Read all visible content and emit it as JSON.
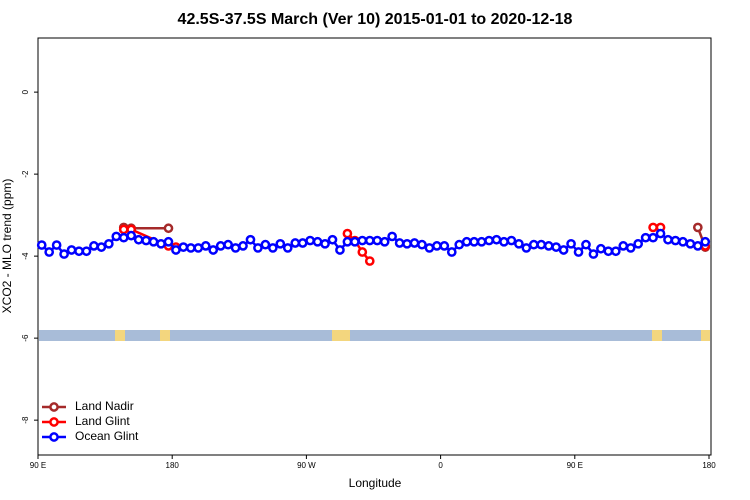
{
  "chart_data": {
    "type": "line",
    "title": "42.5S-37.5S March (Ver 10)   2015-01-01 to 2020-12-18",
    "x_label": "Longitude",
    "y_label": "XCO2 - MLO trend (ppm)",
    "xlim": [
      90,
      540
    ],
    "ylim": [
      -8.85,
      1.32
    ],
    "xticks": [
      {
        "value": 90,
        "label": "90 E"
      },
      {
        "value": 180,
        "label": "180"
      },
      {
        "value": 270,
        "label": "90 W"
      },
      {
        "value": 360,
        "label": "0"
      },
      {
        "value": 450,
        "label": "90 E"
      },
      {
        "value": 540,
        "label": "180"
      }
    ],
    "yticks": [
      0,
      -2,
      -4,
      -6,
      -8
    ],
    "legend": "bottom-left",
    "series": [
      {
        "name": "Land Nadir",
        "color": "#a52a2a",
        "x": [
          147.5,
          152.5,
          177.5,
          300,
          532.5,
          537.5
        ],
        "values": [
          -3.3,
          -3.32,
          -3.32,
          null,
          -3.3,
          -3.78
        ]
      },
      {
        "name": "Land Glint",
        "color": "#ff0000",
        "x": [
          147.5,
          152.5,
          177.5,
          182.5,
          240,
          297.5,
          302.5,
          307.5,
          312.5,
          400,
          502.5,
          507.5,
          520,
          537.5
        ],
        "values": [
          -3.35,
          -3.35,
          -3.75,
          -3.78,
          null,
          -3.45,
          -3.62,
          -3.9,
          -4.12,
          null,
          -3.3,
          -3.3,
          null,
          -3.75
        ]
      },
      {
        "name": "Ocean Glint",
        "color": "#0000ff",
        "x": [
          92.5,
          97.5,
          102.5,
          107.5,
          112.5,
          117.5,
          122.5,
          127.5,
          132.5,
          137.5,
          142.5,
          147.5,
          152.5,
          157.5,
          162.5,
          167.5,
          172.5,
          177.5,
          182.5,
          187.5,
          192.5,
          197.5,
          202.5,
          207.5,
          212.5,
          217.5,
          222.5,
          227.5,
          232.5,
          237.5,
          242.5,
          247.5,
          252.5,
          257.5,
          262.5,
          267.5,
          272.5,
          277.5,
          282.5,
          287.5,
          292.5,
          297.5,
          302.5,
          307.5,
          312.5,
          317.5,
          322.5,
          327.5,
          332.5,
          337.5,
          342.5,
          347.5,
          352.5,
          357.5,
          362.5,
          367.5,
          372.5,
          377.5,
          382.5,
          387.5,
          392.5,
          397.5,
          402.5,
          407.5,
          412.5,
          417.5,
          422.5,
          427.5,
          432.5,
          437.5,
          442.5,
          447.5,
          452.5,
          457.5,
          462.5,
          467.5,
          472.5,
          477.5,
          482.5,
          487.5,
          492.5,
          497.5,
          502.5,
          507.5,
          512.5,
          517.5,
          522.5,
          527.5,
          532.5,
          537.5
        ],
        "values": [
          -3.73,
          -3.9,
          -3.73,
          -3.95,
          -3.85,
          -3.88,
          -3.88,
          -3.75,
          -3.78,
          -3.7,
          -3.52,
          -3.55,
          -3.5,
          -3.6,
          -3.62,
          -3.65,
          -3.7,
          -3.65,
          -3.85,
          -3.78,
          -3.8,
          -3.8,
          -3.75,
          -3.85,
          -3.75,
          -3.72,
          -3.8,
          -3.75,
          -3.6,
          -3.8,
          -3.72,
          -3.8,
          -3.7,
          -3.8,
          -3.68,
          -3.68,
          -3.62,
          -3.65,
          -3.7,
          -3.6,
          -3.85,
          -3.65,
          -3.65,
          -3.62,
          -3.62,
          -3.62,
          -3.65,
          -3.52,
          -3.68,
          -3.7,
          -3.68,
          -3.72,
          -3.8,
          -3.75,
          -3.75,
          -3.9,
          -3.72,
          -3.65,
          -3.65,
          -3.65,
          -3.62,
          -3.6,
          -3.65,
          -3.62,
          -3.7,
          -3.8,
          -3.72,
          -3.72,
          -3.75,
          -3.78,
          -3.85,
          -3.7,
          -3.9,
          -3.72,
          -3.95,
          -3.82,
          -3.88,
          -3.88,
          -3.75,
          -3.8,
          -3.7,
          -3.55,
          -3.55,
          -3.45,
          -3.6,
          -3.62,
          -3.65,
          -3.7,
          -3.75,
          -3.65
        ]
      }
    ]
  }
}
